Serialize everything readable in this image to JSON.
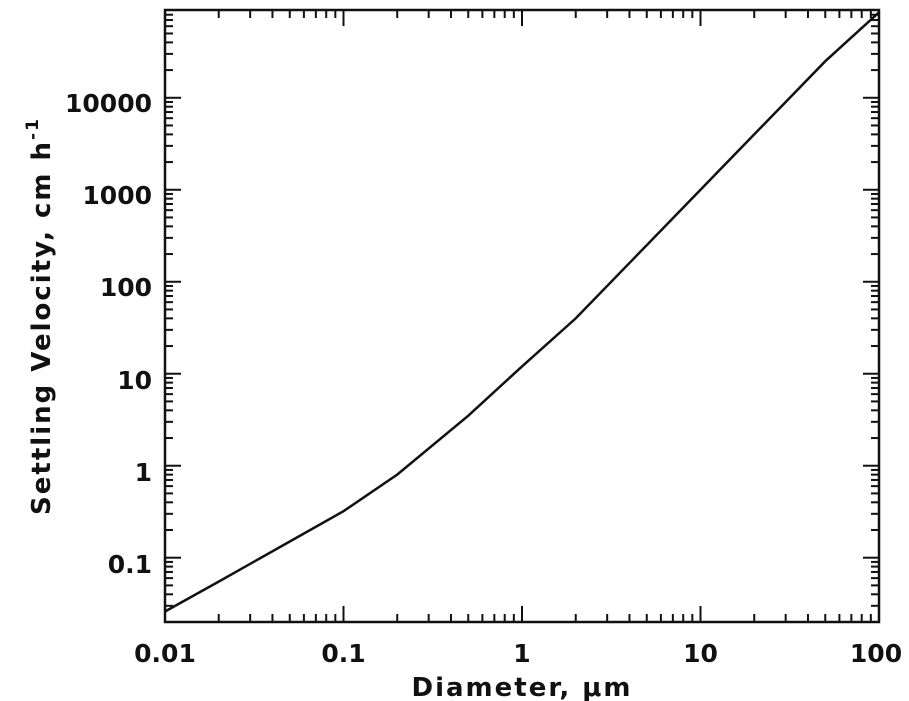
{
  "chart_data": {
    "type": "line",
    "x_scale": "log",
    "y_scale": "log",
    "xlim": [
      0.01,
      100
    ],
    "ylim": [
      0.02,
      90000
    ],
    "x_ticks": [
      {
        "value": 0.01,
        "label": "0.01"
      },
      {
        "value": 0.1,
        "label": "0.1"
      },
      {
        "value": 1,
        "label": "1"
      },
      {
        "value": 10,
        "label": "10"
      },
      {
        "value": 100,
        "label": "100"
      }
    ],
    "y_ticks": [
      {
        "value": 0.1,
        "label": "0.1"
      },
      {
        "value": 1,
        "label": "1"
      },
      {
        "value": 10,
        "label": "10"
      },
      {
        "value": 100,
        "label": "100"
      },
      {
        "value": 1000,
        "label": "1000"
      },
      {
        "value": 10000,
        "label": "10000"
      }
    ],
    "xlabel": "Diameter, μm",
    "ylabel": "Settling Velocity, cm h",
    "ylabel_superscript": "-1",
    "grid": false,
    "series": [
      {
        "x": [
          0.01,
          0.02,
          0.05,
          0.1,
          0.2,
          0.5,
          1,
          2,
          5,
          10,
          20,
          50,
          100
        ],
        "y": [
          0.026,
          0.055,
          0.15,
          0.32,
          0.8,
          3.5,
          12,
          40,
          250,
          1000,
          4000,
          25000,
          85000
        ]
      }
    ]
  }
}
